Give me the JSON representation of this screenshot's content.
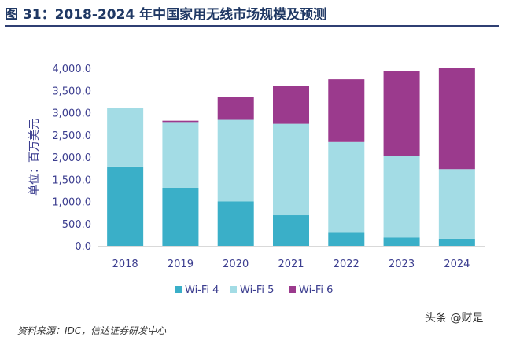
{
  "page": {
    "title": "图 31：2018-2024 年中国家用无线市场规模及预测",
    "source": "资料来源：IDC，信达证券研发中心",
    "watermark": "头条 @财是"
  },
  "colors": {
    "title": "#1f3864",
    "axis_text": "#3b3d8f",
    "wifi4": "#3aafc8",
    "wifi5": "#a3dce5",
    "wifi6": "#9b3a8d"
  },
  "chart_data": {
    "type": "bar",
    "stacked": true,
    "title": "",
    "xlabel": "",
    "ylabel": "单位：百万美元",
    "ylim": [
      0,
      4000
    ],
    "yticks": [
      "0.0",
      "500.0",
      "1,000.0",
      "1,500.0",
      "2,000.0",
      "2,500.0",
      "3,000.0",
      "3,500.0",
      "4,000.0"
    ],
    "ytick_values": [
      0,
      500,
      1000,
      1500,
      2000,
      2500,
      3000,
      3500,
      4000
    ],
    "categories": [
      "2018",
      "2019",
      "2020",
      "2021",
      "2022",
      "2023",
      "2024"
    ],
    "series": [
      {
        "name": "Wi-Fi 4",
        "values": [
          1790,
          1310,
          1000,
          690,
          310,
          190,
          160
        ]
      },
      {
        "name": "Wi-Fi 5",
        "values": [
          1310,
          1480,
          1840,
          2060,
          2030,
          1830,
          1570
        ]
      },
      {
        "name": "Wi-Fi 6",
        "values": [
          0,
          30,
          510,
          860,
          1410,
          1910,
          2270
        ]
      }
    ],
    "grid": false,
    "legend": "bottom"
  }
}
